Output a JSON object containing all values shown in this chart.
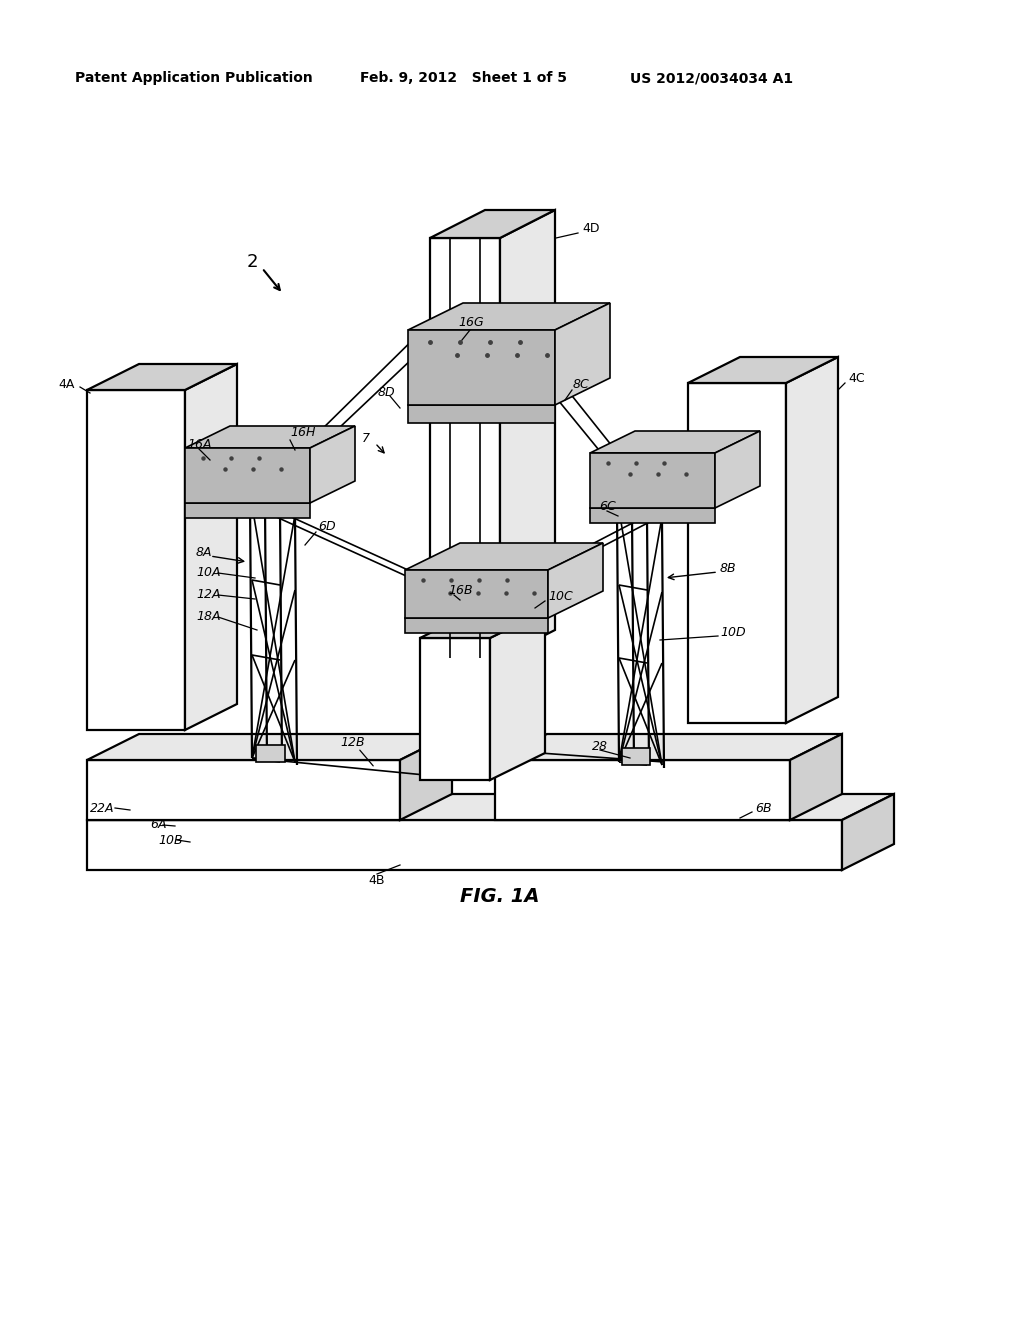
{
  "background_color": "#ffffff",
  "line_color": "#000000",
  "header_left": "Patent Application Publication",
  "header_mid": "Feb. 9, 2012   Sheet 1 of 5",
  "header_right": "US 2012/0034034 A1",
  "figure_label": "FIG. 1A",
  "fig_color_white": "#ffffff",
  "fig_color_light": "#e8e8e8",
  "fig_color_mid": "#d0d0d0",
  "fig_color_dark": "#b8b8b8",
  "fig_color_plate": "#c8c8c8",
  "bolt_color": "#404040"
}
